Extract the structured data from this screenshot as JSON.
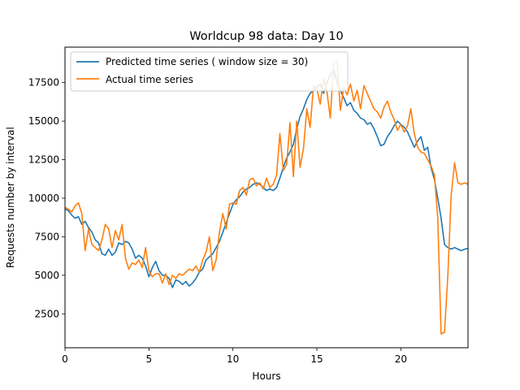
{
  "chart_data": {
    "type": "line",
    "title": "Worldcup 98 data: Day 10",
    "xlabel": "Hours",
    "ylabel": "Requests number by interval",
    "xlim": [
      0,
      24
    ],
    "ylim": [
      300,
      19800
    ],
    "xticks": [
      0,
      5,
      10,
      15,
      20
    ],
    "xtick_labels": [
      "0",
      "5",
      "10",
      "15",
      "20"
    ],
    "yticks": [
      2500,
      5000,
      7500,
      10000,
      12500,
      15000,
      17500
    ],
    "ytick_labels": [
      "2500",
      "5000",
      "7500",
      "10000",
      "12500",
      "15000",
      "17500"
    ],
    "grid": false,
    "legend_position": "upper-left",
    "series": [
      {
        "name": "Predicted time series ( window size = 30)",
        "color": "#1f77b4",
        "x": [
          0,
          0.2,
          0.4,
          0.6,
          0.8,
          1.0,
          1.2,
          1.4,
          1.6,
          1.8,
          2.0,
          2.2,
          2.4,
          2.6,
          2.8,
          3.0,
          3.2,
          3.4,
          3.6,
          3.8,
          4.0,
          4.2,
          4.4,
          4.6,
          4.8,
          5.0,
          5.2,
          5.4,
          5.6,
          5.8,
          6.0,
          6.2,
          6.4,
          6.6,
          6.8,
          7.0,
          7.2,
          7.4,
          7.6,
          7.8,
          8.0,
          8.2,
          8.4,
          8.6,
          8.8,
          9.0,
          9.2,
          9.4,
          9.6,
          9.8,
          10.0,
          10.2,
          10.4,
          10.6,
          10.8,
          11.0,
          11.2,
          11.4,
          11.6,
          11.8,
          12.0,
          12.2,
          12.4,
          12.6,
          12.8,
          13.0,
          13.2,
          13.4,
          13.6,
          13.8,
          14.0,
          14.2,
          14.4,
          14.6,
          14.8,
          15.0,
          15.2,
          15.4,
          15.6,
          15.8,
          16.0,
          16.2,
          16.4,
          16.6,
          16.8,
          17.0,
          17.2,
          17.4,
          17.6,
          17.8,
          18.0,
          18.2,
          18.4,
          18.6,
          18.8,
          19.0,
          19.2,
          19.4,
          19.6,
          19.8,
          20.0,
          20.2,
          20.4,
          20.6,
          20.8,
          21.0,
          21.2,
          21.4,
          21.6,
          21.8,
          22.0,
          22.2,
          22.4,
          22.6,
          22.8,
          23.0,
          23.2,
          23.4,
          23.6,
          23.8,
          24.0
        ],
        "y": [
          9300,
          9200,
          8900,
          8700,
          8800,
          8300,
          8500,
          8100,
          7800,
          7300,
          7100,
          6400,
          6300,
          6700,
          6300,
          6500,
          7100,
          7000,
          7200,
          7100,
          6700,
          6100,
          6300,
          6100,
          5600,
          4900,
          5500,
          5900,
          5300,
          5000,
          5000,
          4800,
          4200,
          4700,
          4600,
          4400,
          4600,
          4300,
          4500,
          4800,
          5200,
          5400,
          6000,
          6200,
          6400,
          6800,
          7200,
          7800,
          8400,
          9000,
          9600,
          9900,
          10100,
          10400,
          10600,
          10700,
          10900,
          11000,
          10900,
          10700,
          10500,
          10600,
          10500,
          10700,
          11300,
          12000,
          12600,
          13000,
          13500,
          14500,
          15300,
          15800,
          16400,
          16800,
          17000,
          17200,
          17400,
          16800,
          17500,
          18000,
          18300,
          17500,
          17000,
          16500,
          16000,
          16200,
          15700,
          15500,
          15200,
          15100,
          14800,
          14900,
          14500,
          14000,
          13400,
          13500,
          14000,
          14300,
          14700,
          15000,
          14800,
          14600,
          14300,
          13800,
          13300,
          13700,
          14000,
          13100,
          13300,
          12000,
          11200,
          10000,
          8700,
          7000,
          6800,
          6700,
          6800,
          6700,
          6600,
          6700,
          6750
        ]
      },
      {
        "name": "Actual time series",
        "color": "#ff7f0e",
        "x": [
          0,
          0.2,
          0.4,
          0.6,
          0.8,
          1.0,
          1.2,
          1.4,
          1.6,
          1.8,
          2.0,
          2.2,
          2.4,
          2.6,
          2.8,
          3.0,
          3.2,
          3.4,
          3.6,
          3.8,
          4.0,
          4.2,
          4.4,
          4.6,
          4.8,
          5.0,
          5.2,
          5.4,
          5.6,
          5.8,
          6.0,
          6.2,
          6.4,
          6.6,
          6.8,
          7.0,
          7.2,
          7.4,
          7.6,
          7.8,
          8.0,
          8.2,
          8.4,
          8.6,
          8.8,
          9.0,
          9.2,
          9.4,
          9.6,
          9.8,
          10.0,
          10.2,
          10.4,
          10.6,
          10.8,
          11.0,
          11.2,
          11.4,
          11.6,
          11.8,
          12.0,
          12.2,
          12.4,
          12.6,
          12.8,
          13.0,
          13.2,
          13.4,
          13.6,
          13.8,
          14.0,
          14.2,
          14.4,
          14.6,
          14.8,
          15.0,
          15.2,
          15.4,
          15.6,
          15.8,
          16.0,
          16.2,
          16.4,
          16.6,
          16.8,
          17.0,
          17.2,
          17.4,
          17.6,
          17.8,
          18.0,
          18.2,
          18.4,
          18.6,
          18.8,
          19.0,
          19.2,
          19.4,
          19.6,
          19.8,
          20.0,
          20.2,
          20.4,
          20.6,
          20.8,
          21.0,
          21.2,
          21.4,
          21.6,
          21.8,
          22.0,
          22.2,
          22.4,
          22.6,
          22.8,
          23.0,
          23.2,
          23.4,
          23.6,
          23.8,
          24.0
        ],
        "y": [
          9400,
          9300,
          9100,
          9500,
          9700,
          9000,
          6600,
          8000,
          7000,
          6800,
          6600,
          7300,
          8300,
          8000,
          6800,
          7900,
          7300,
          8300,
          6100,
          5400,
          5800,
          5700,
          6000,
          5500,
          6800,
          5300,
          4900,
          5100,
          5100,
          4500,
          5100,
          4400,
          5000,
          4800,
          5100,
          5000,
          5200,
          5400,
          5300,
          5600,
          5200,
          6000,
          6500,
          7500,
          5300,
          6000,
          7800,
          9000,
          8000,
          9600,
          9700,
          9600,
          10500,
          10700,
          10200,
          11200,
          11300,
          10800,
          11000,
          10600,
          11300,
          10700,
          10900,
          11500,
          14200,
          11800,
          12200,
          14900,
          11400,
          15000,
          12000,
          13200,
          15800,
          14600,
          17300,
          17100,
          16100,
          17800,
          16900,
          15200,
          18800,
          18900,
          15700,
          17200,
          16700,
          17400,
          16300,
          17000,
          15800,
          17300,
          16800,
          16300,
          15800,
          15600,
          15200,
          15900,
          16300,
          15600,
          15100,
          14400,
          14800,
          14300,
          14700,
          15800,
          14200,
          13300,
          13000,
          12900,
          12500,
          12100,
          11500,
          8700,
          1200,
          1300,
          5000,
          10200,
          12300,
          11000,
          10900,
          11000,
          10900
        ]
      }
    ]
  }
}
